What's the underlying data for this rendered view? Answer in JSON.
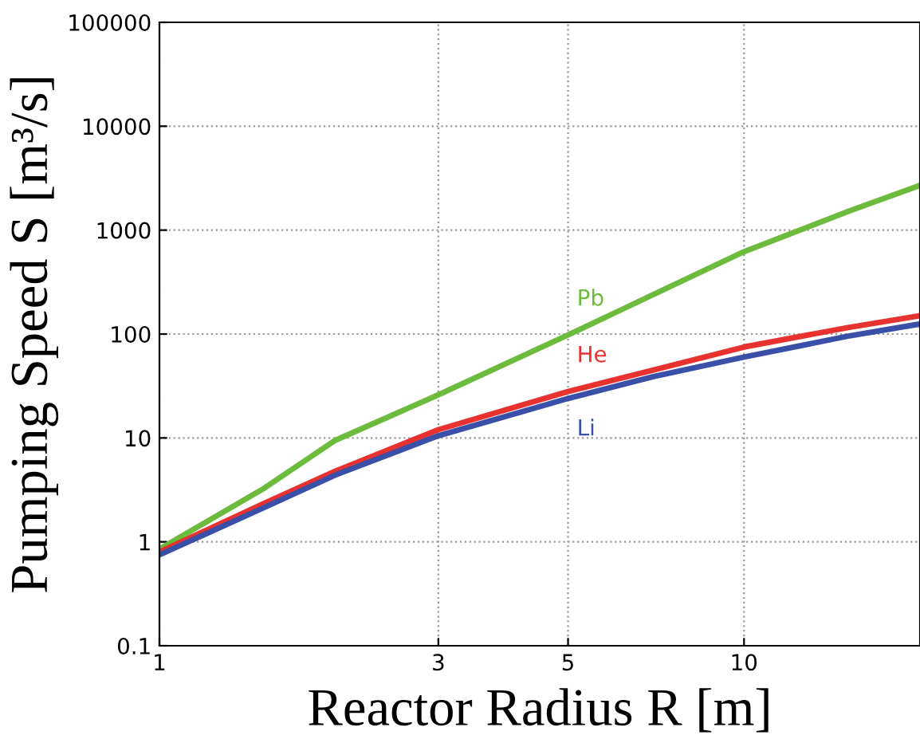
{
  "chart_data": {
    "type": "line",
    "xlabel": "Reactor Radius R [m]",
    "ylabel": "Pumping Speed S [m³/s]",
    "log": "xy",
    "grid": true,
    "legend": false,
    "marker": "none",
    "line_style": "solid",
    "xlim": [
      1,
      20
    ],
    "xticks": [
      1,
      3,
      5,
      10
    ],
    "ylim": [
      0.1,
      100000
    ],
    "yticks": [
      0.1,
      1,
      10,
      100,
      1000,
      10000,
      100000
    ],
    "series": [
      {
        "name": "Pb",
        "color": "#6cbb3c",
        "x": [
          1,
          1.5,
          2,
          3,
          5,
          7,
          10,
          15,
          20
        ],
        "values": [
          0.85,
          3.2,
          9.5,
          26,
          98,
          240,
          620,
          1500,
          2700
        ]
      },
      {
        "name": "He",
        "color": "#e8322f",
        "x": [
          1,
          1.5,
          2,
          3,
          5,
          7,
          10,
          15,
          20
        ],
        "values": [
          0.8,
          2.3,
          4.8,
          12,
          28,
          45,
          75,
          115,
          150
        ]
      },
      {
        "name": "Li",
        "color": "#3a4fa8",
        "x": [
          1,
          1.5,
          2,
          3,
          5,
          7,
          10,
          15,
          20
        ],
        "values": [
          0.75,
          2.1,
          4.4,
          10.5,
          24,
          39,
          60,
          95,
          125
        ]
      }
    ]
  }
}
